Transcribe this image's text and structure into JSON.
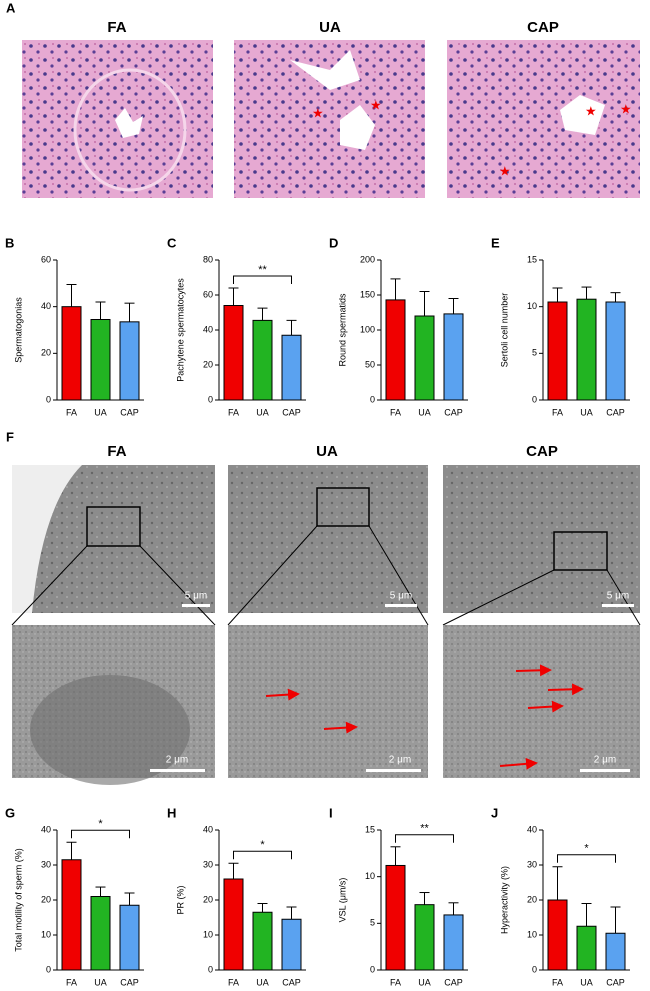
{
  "panel_A": {
    "label": "A",
    "titles": [
      "FA",
      "UA",
      "CAP"
    ]
  },
  "panel_F": {
    "label": "F",
    "titles": [
      "FA",
      "UA",
      "CAP"
    ],
    "scale_top": [
      "5 μm",
      "5 μm",
      "5 μm"
    ],
    "scale_bottom": [
      "2 μm",
      "2 μm",
      "2 μm"
    ]
  },
  "chart_data": [
    {
      "panel": "B",
      "type": "bar",
      "ylabel": "Spermatogonias",
      "categories": [
        "FA",
        "UA",
        "CAP"
      ],
      "values": [
        40,
        34.5,
        33.5
      ],
      "errors": [
        9.5,
        7.5,
        8
      ],
      "colors": [
        "#f00000",
        "#22b422",
        "#5aa2f0"
      ],
      "ylim": [
        0,
        60
      ],
      "yticks": [
        0,
        20,
        40,
        60
      ]
    },
    {
      "panel": "C",
      "type": "bar",
      "ylabel": "Pachytene spermatocytes",
      "categories": [
        "FA",
        "UA",
        "CAP"
      ],
      "values": [
        54,
        45.5,
        37
      ],
      "errors": [
        10,
        7,
        8.5
      ],
      "colors": [
        "#f00000",
        "#22b422",
        "#5aa2f0"
      ],
      "ylim": [
        0,
        80
      ],
      "yticks": [
        0,
        20,
        40,
        60,
        80
      ],
      "significance": {
        "label": "**",
        "between": [
          "FA",
          "CAP"
        ]
      }
    },
    {
      "panel": "D",
      "type": "bar",
      "ylabel": "Round spermatids",
      "categories": [
        "FA",
        "UA",
        "CAP"
      ],
      "values": [
        143,
        120,
        123
      ],
      "errors": [
        30,
        35,
        22
      ],
      "colors": [
        "#f00000",
        "#22b422",
        "#5aa2f0"
      ],
      "ylim": [
        0,
        200
      ],
      "yticks": [
        0,
        50,
        100,
        150,
        200
      ]
    },
    {
      "panel": "E",
      "type": "bar",
      "ylabel": "Sertoli cell number",
      "categories": [
        "FA",
        "UA",
        "CAP"
      ],
      "values": [
        10.5,
        10.8,
        10.5
      ],
      "errors": [
        1.5,
        1.3,
        1
      ],
      "colors": [
        "#f00000",
        "#22b422",
        "#5aa2f0"
      ],
      "ylim": [
        0,
        15
      ],
      "yticks": [
        0,
        5,
        10,
        15
      ]
    },
    {
      "panel": "G",
      "type": "bar",
      "ylabel": "Total motility of sperm (%)",
      "categories": [
        "FA",
        "UA",
        "CAP"
      ],
      "values": [
        31.5,
        21,
        18.5
      ],
      "errors": [
        5,
        2.7,
        3.5
      ],
      "colors": [
        "#f00000",
        "#22b422",
        "#5aa2f0"
      ],
      "ylim": [
        0,
        40
      ],
      "yticks": [
        0,
        10,
        20,
        30,
        40
      ],
      "significance": {
        "label": "*",
        "between": [
          "FA",
          "CAP"
        ]
      }
    },
    {
      "panel": "H",
      "type": "bar",
      "ylabel": "PR (%)",
      "categories": [
        "FA",
        "UA",
        "CAP"
      ],
      "values": [
        26,
        16.5,
        14.5
      ],
      "errors": [
        4.5,
        2.5,
        3.5
      ],
      "colors": [
        "#f00000",
        "#22b422",
        "#5aa2f0"
      ],
      "ylim": [
        0,
        40
      ],
      "yticks": [
        0,
        10,
        20,
        30,
        40
      ],
      "significance": {
        "label": "*",
        "between": [
          "FA",
          "CAP"
        ]
      }
    },
    {
      "panel": "I",
      "type": "bar",
      "ylabel": "VSL (μm/s)",
      "categories": [
        "FA",
        "UA",
        "CAP"
      ],
      "values": [
        11.2,
        7,
        5.9
      ],
      "errors": [
        2,
        1.3,
        1.3
      ],
      "colors": [
        "#f00000",
        "#22b422",
        "#5aa2f0"
      ],
      "ylim": [
        0,
        15
      ],
      "yticks": [
        0,
        5,
        10,
        15
      ],
      "significance": {
        "label": "**",
        "between": [
          "FA",
          "CAP"
        ]
      }
    },
    {
      "panel": "J",
      "type": "bar",
      "ylabel": "Hyperactivity (%)",
      "categories": [
        "FA",
        "UA",
        "CAP"
      ],
      "values": [
        20,
        12.5,
        10.5
      ],
      "errors": [
        9.5,
        6.5,
        7.5
      ],
      "colors": [
        "#f00000",
        "#22b422",
        "#5aa2f0"
      ],
      "ylim": [
        0,
        40
      ],
      "yticks": [
        0,
        10,
        20,
        30,
        40
      ],
      "significance": {
        "label": "*",
        "between": [
          "FA",
          "CAP"
        ]
      }
    }
  ]
}
